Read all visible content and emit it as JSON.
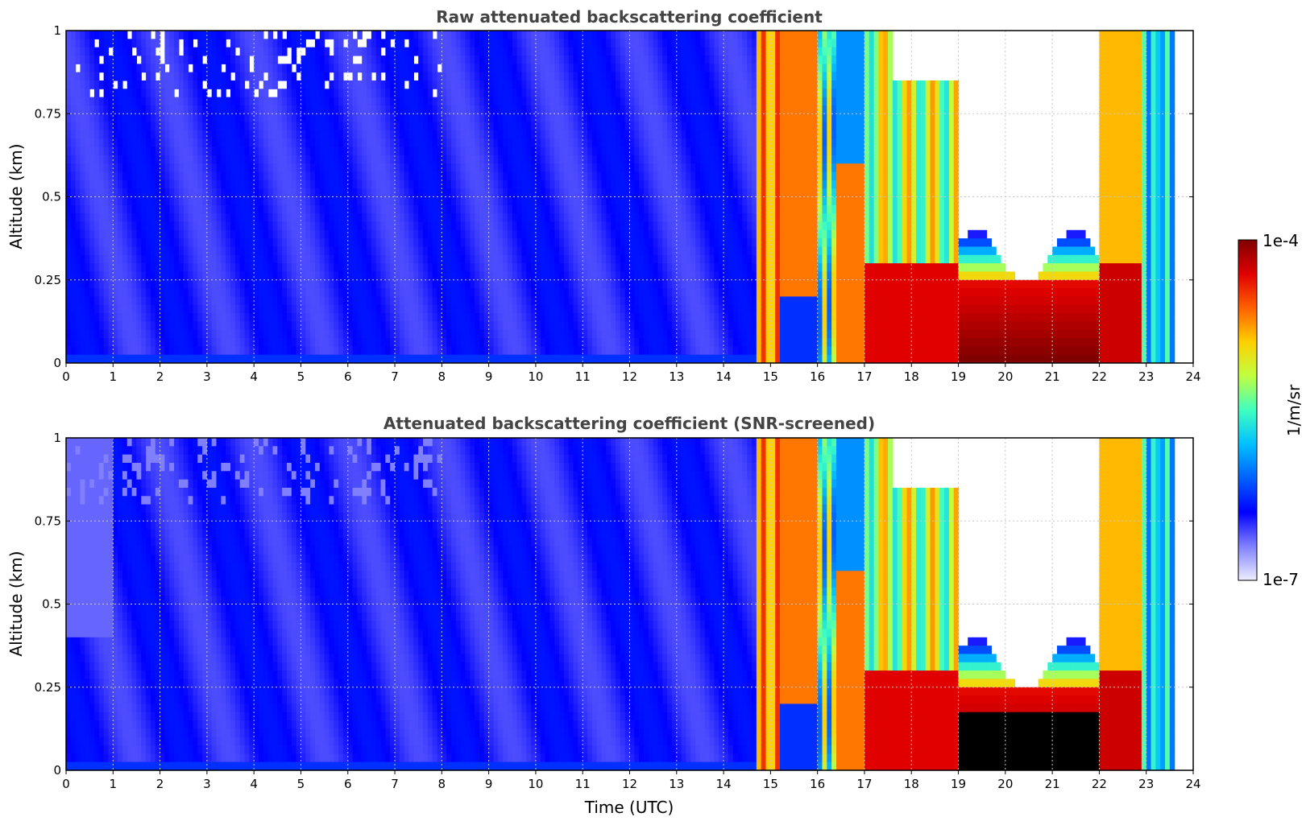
{
  "chart_data": [
    {
      "type": "heatmap",
      "title": "Raw attenuated backscattering coefficient",
      "xlabel": "",
      "ylabel": "Altitude (km)",
      "xlim": [
        0,
        24
      ],
      "ylim": [
        0,
        1
      ],
      "xticks": [
        "0",
        "1",
        "2",
        "3",
        "4",
        "5",
        "6",
        "7",
        "8",
        "9",
        "10",
        "11",
        "12",
        "13",
        "14",
        "15",
        "16",
        "17",
        "18",
        "19",
        "20",
        "21",
        "22",
        "23",
        "24"
      ],
      "yticks": [
        "0",
        "0.25",
        "0.5",
        "0.75",
        "1"
      ],
      "grid": true,
      "colorscale": "jet",
      "value_range": [
        "1e-7",
        "1e-4"
      ],
      "segments": [
        {
          "t_start": 0,
          "t_end": 14.7,
          "level": 0.12,
          "description_level": "low"
        },
        {
          "t_start": 14.7,
          "t_end": 16.3,
          "level": 0.8
        },
        {
          "t_start": 16.3,
          "t_end": 17.0,
          "level": 0.5
        },
        {
          "t_start": 17.0,
          "t_end": 19.0,
          "level": 0.72
        },
        {
          "t_start": 19.0,
          "t_end": 22.0,
          "level": 0.95,
          "top_altitude": 0.3
        },
        {
          "t_start": 22.0,
          "t_end": 23.0,
          "level": 0.85
        },
        {
          "t_start": 23.0,
          "t_end": 23.65,
          "level": 0.4
        }
      ]
    },
    {
      "type": "heatmap",
      "title": "Attenuated backscattering coefficient (SNR-screened)",
      "xlabel": "Time (UTC)",
      "ylabel": "Altitude (km)",
      "xlim": [
        0,
        24
      ],
      "ylim": [
        0,
        1
      ],
      "xticks": [
        "0",
        "1",
        "2",
        "3",
        "4",
        "5",
        "6",
        "7",
        "8",
        "9",
        "10",
        "11",
        "12",
        "13",
        "14",
        "15",
        "16",
        "17",
        "18",
        "19",
        "20",
        "21",
        "22",
        "23",
        "24"
      ],
      "yticks": [
        "0",
        "0.25",
        "0.5",
        "0.75",
        "1"
      ],
      "grid": true,
      "colorscale": "jet",
      "value_range": [
        "1e-7",
        "1e-4"
      ]
    }
  ],
  "colorbar": {
    "label": "1/m/sr",
    "max_label": "1e-4",
    "min_label": "1e-7",
    "colors": [
      "#eeeeff",
      "#8080ff",
      "#0000ff",
      "#0060ff",
      "#00c0ff",
      "#40ffc0",
      "#c0ff40",
      "#ffd000",
      "#ff6000",
      "#e00000",
      "#800000"
    ]
  }
}
